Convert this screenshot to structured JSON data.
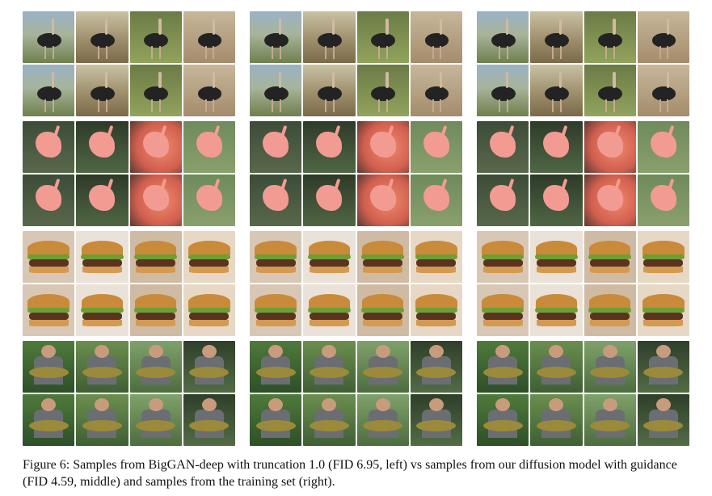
{
  "figure": {
    "panels": [
      {
        "rows": [
          {
            "class": "ostrich",
            "tiles": 8
          },
          {
            "class": "flamingo",
            "tiles": 8
          },
          {
            "class": "burger",
            "tiles": 8
          },
          {
            "class": "tench",
            "tiles": 8
          }
        ]
      },
      {
        "rows": [
          {
            "class": "ostrich",
            "tiles": 8
          },
          {
            "class": "flamingo",
            "tiles": 8
          },
          {
            "class": "burger",
            "tiles": 8
          },
          {
            "class": "tench",
            "tiles": 8
          }
        ]
      },
      {
        "rows": [
          {
            "class": "ostrich",
            "tiles": 8
          },
          {
            "class": "flamingo",
            "tiles": 8
          },
          {
            "class": "burger",
            "tiles": 8
          },
          {
            "class": "tench",
            "tiles": 8
          }
        ]
      }
    ]
  },
  "caption": {
    "text": "Figure 6:  Samples from BigGAN-deep with truncation 1.0 (FID 6.95, left) vs samples from our diffusion model with guidance (FID 4.59, middle) and samples from the training set (right)."
  }
}
